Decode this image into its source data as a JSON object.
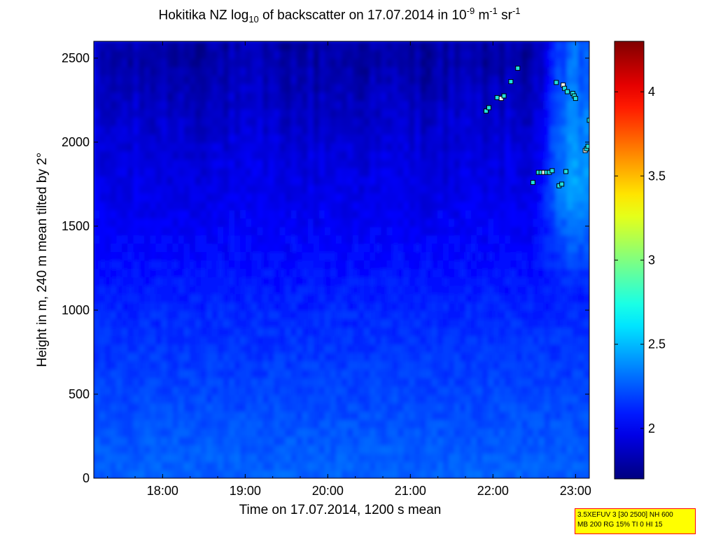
{
  "title": {
    "prefix": "Hokitika NZ log",
    "sub": "10",
    "middle": " of backscatter on 17.07.2014 in 10",
    "sup1": "-9",
    "m_unit": " m",
    "sup2": "-1",
    "sr_unit": " sr",
    "sup3": "-1"
  },
  "info_box": {
    "line1": "3.5XEFUV 3 [30 2500] NH 600",
    "line2": "MB 200 RG 15% TI 0 HI 15"
  },
  "chart_data": {
    "type": "heatmap",
    "title": "Hokitika NZ log10 of backscatter on 17.07.2014 in 10^-9 m^-1 sr^-1",
    "xlabel": "Time on 17.07.2014, 1200 s mean",
    "ylabel": "Height in m, 240 m mean tilted by 2°",
    "xlim": [
      "17:10",
      "23:10"
    ],
    "ylim": [
      0,
      2600
    ],
    "x_ticks": [
      "18:00",
      "19:00",
      "20:00",
      "21:00",
      "22:00",
      "23:00"
    ],
    "y_ticks": [
      0,
      500,
      1000,
      1500,
      2000,
      2500
    ],
    "colorbar": {
      "range": [
        1.7,
        4.3
      ],
      "ticks": [
        2,
        2.5,
        3,
        3.5,
        4
      ],
      "colormap": "jet"
    },
    "height_profile": [
      {
        "height": 0,
        "log_backscatter": 2.28
      },
      {
        "height": 500,
        "log_backscatter": 2.2
      },
      {
        "height": 1000,
        "log_backscatter": 2.12
      },
      {
        "height": 1500,
        "log_backscatter": 2.0
      },
      {
        "height": 2000,
        "log_backscatter": 1.92
      },
      {
        "height": 2500,
        "log_backscatter": 1.8
      }
    ],
    "marker_points": [
      {
        "time": "21:55",
        "height": 2185
      },
      {
        "time": "21:57",
        "height": 2205
      },
      {
        "time": "22:03",
        "height": 2265
      },
      {
        "time": "22:06",
        "height": 2260
      },
      {
        "time": "22:08",
        "height": 2275
      },
      {
        "time": "22:13",
        "height": 2360
      },
      {
        "time": "22:18",
        "height": 2440
      },
      {
        "time": "22:29",
        "height": 1760
      },
      {
        "time": "22:33",
        "height": 1820
      },
      {
        "time": "22:35",
        "height": 1820
      },
      {
        "time": "22:37",
        "height": 1820
      },
      {
        "time": "22:39",
        "height": 1820
      },
      {
        "time": "22:41",
        "height": 1820
      },
      {
        "time": "22:43",
        "height": 1830
      },
      {
        "time": "22:46",
        "height": 2355
      },
      {
        "time": "22:48",
        "height": 1740
      },
      {
        "time": "22:50",
        "height": 1750
      },
      {
        "time": "22:51",
        "height": 2340
      },
      {
        "time": "22:52",
        "height": 2320
      },
      {
        "time": "22:53",
        "height": 1825
      },
      {
        "time": "22:54",
        "height": 2300
      },
      {
        "time": "22:58",
        "height": 2290
      },
      {
        "time": "22:59",
        "height": 2275
      },
      {
        "time": "23:00",
        "height": 2260
      },
      {
        "time": "23:07",
        "height": 1950
      },
      {
        "time": "23:08",
        "height": 1960
      },
      {
        "time": "23:09",
        "height": 1975
      },
      {
        "time": "23:10",
        "height": 2130
      }
    ]
  }
}
